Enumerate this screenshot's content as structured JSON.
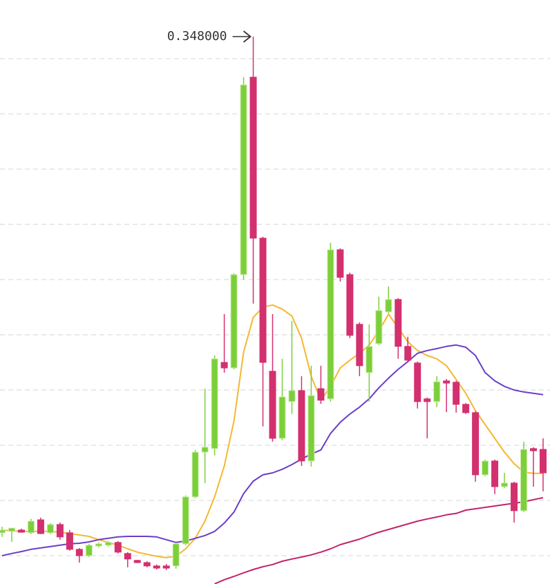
{
  "chart_data": {
    "type": "candlestick",
    "open": [
      0.1683,
      0.1688,
      0.1693,
      0.1683,
      0.173,
      0.1683,
      0.1713,
      0.1683,
      0.1623,
      0.16,
      0.1635,
      0.1638,
      0.1648,
      0.1608,
      0.1583,
      0.1575,
      0.1563,
      0.1563,
      0.1563,
      0.1643,
      0.1813,
      0.1975,
      0.1988,
      0.23,
      0.228,
      0.2618,
      0.3333,
      0.275,
      0.2268,
      0.2025,
      0.2158,
      0.2198,
      0.1943,
      0.2205,
      0.2168,
      0.2708,
      0.2618,
      0.2438,
      0.2263,
      0.2368,
      0.2483,
      0.2528,
      0.2358,
      0.2298,
      0.2168,
      0.2158,
      0.2233,
      0.2228,
      0.2148,
      0.2118,
      0.1893,
      0.1943,
      0.185,
      0.1863,
      0.1763,
      0.1988,
      0.1985
    ],
    "high": [
      0.1705,
      0.17,
      0.1698,
      0.1733,
      0.1738,
      0.1718,
      0.172,
      0.1693,
      0.1628,
      0.1643,
      0.1648,
      0.1653,
      0.1653,
      0.1613,
      0.1585,
      0.158,
      0.1568,
      0.157,
      0.1648,
      0.1818,
      0.1983,
      0.2205,
      0.2325,
      0.2475,
      0.2623,
      0.3333,
      0.348,
      0.2755,
      0.2475,
      0.2313,
      0.245,
      0.225,
      0.2288,
      0.2288,
      0.2733,
      0.2713,
      0.2625,
      0.2445,
      0.2438,
      0.2538,
      0.2575,
      0.2533,
      0.2393,
      0.2303,
      0.2173,
      0.225,
      0.224,
      0.2233,
      0.2153,
      0.2123,
      0.1948,
      0.1948,
      0.19,
      0.1868,
      0.2013,
      0.1993,
      0.2025
    ],
    "low": [
      0.1668,
      0.165,
      0.1683,
      0.1678,
      0.1678,
      0.1678,
      0.1658,
      0.1618,
      0.1575,
      0.1595,
      0.163,
      0.1633,
      0.1608,
      0.1558,
      0.1573,
      0.1558,
      0.155,
      0.1548,
      0.1553,
      0.1638,
      0.1808,
      0.1863,
      0.1963,
      0.2263,
      0.2275,
      0.26,
      0.2513,
      0.2068,
      0.2013,
      0.2018,
      0.2113,
      0.1925,
      0.1923,
      0.215,
      0.2158,
      0.2593,
      0.2388,
      0.225,
      0.2158,
      0.2363,
      0.2478,
      0.2313,
      0.23,
      0.2133,
      0.2025,
      0.2138,
      0.212,
      0.2118,
      0.2113,
      0.1868,
      0.1888,
      0.1823,
      0.1845,
      0.172,
      0.1758,
      0.185,
      0.1833
    ],
    "close": [
      0.1693,
      0.17,
      0.1685,
      0.1725,
      0.168,
      0.1713,
      0.1668,
      0.1623,
      0.16,
      0.1638,
      0.1643,
      0.1648,
      0.1613,
      0.1588,
      0.1575,
      0.1563,
      0.1555,
      0.1555,
      0.1643,
      0.1813,
      0.1975,
      0.1993,
      0.2313,
      0.228,
      0.2618,
      0.3305,
      0.275,
      0.23,
      0.2025,
      0.2175,
      0.2198,
      0.1943,
      0.218,
      0.2163,
      0.2708,
      0.2608,
      0.2398,
      0.2288,
      0.2358,
      0.2488,
      0.2528,
      0.2358,
      0.2308,
      0.2158,
      0.2158,
      0.223,
      0.2225,
      0.2148,
      0.2118,
      0.1893,
      0.1943,
      0.185,
      0.1863,
      0.1763,
      0.1985,
      0.198,
      0.19
    ],
    "up_color": "#7ccf38",
    "down_color": "#d3306f",
    "lines": [
      {
        "color": "#f4b731",
        "values": [
          0.1693,
          0.169,
          0.1688,
          0.1688,
          0.1688,
          0.1688,
          0.1685,
          0.168,
          0.1675,
          0.167,
          0.1658,
          0.1648,
          0.1638,
          0.1625,
          0.1613,
          0.1605,
          0.1598,
          0.1593,
          0.1598,
          0.1625,
          0.1663,
          0.1725,
          0.1813,
          0.1925,
          0.2088,
          0.2338,
          0.2463,
          0.25,
          0.2508,
          0.2493,
          0.2468,
          0.2388,
          0.225,
          0.2163,
          0.2213,
          0.228,
          0.2308,
          0.2333,
          0.2363,
          0.2413,
          0.2475,
          0.2425,
          0.2375,
          0.2343,
          0.2325,
          0.2313,
          0.2288,
          0.2238,
          0.2188,
          0.2125,
          0.2075,
          0.2025,
          0.1975,
          0.1933,
          0.1903,
          0.1898,
          0.1898
        ]
      },
      {
        "color": "#6a3cc9",
        "values": [
          0.16,
          0.1608,
          0.1615,
          0.1623,
          0.1628,
          0.1633,
          0.1638,
          0.1643,
          0.1645,
          0.165,
          0.1658,
          0.1663,
          0.1668,
          0.167,
          0.167,
          0.167,
          0.1668,
          0.1658,
          0.1648,
          0.1653,
          0.1663,
          0.1673,
          0.1688,
          0.1718,
          0.1758,
          0.1825,
          0.187,
          0.1893,
          0.19,
          0.1913,
          0.193,
          0.195,
          0.1968,
          0.1983,
          0.2043,
          0.2083,
          0.2113,
          0.2138,
          0.2168,
          0.2208,
          0.2243,
          0.2275,
          0.2303,
          0.2333,
          0.2343,
          0.235,
          0.2358,
          0.2363,
          0.2355,
          0.2325,
          0.2263,
          0.2233,
          0.2213,
          0.22,
          0.2193,
          0.2188,
          0.2183
        ]
      },
      {
        "color": "#c2226a",
        "values": [
          null,
          null,
          null,
          null,
          null,
          null,
          null,
          null,
          null,
          null,
          null,
          null,
          null,
          null,
          null,
          null,
          null,
          null,
          null,
          null,
          null,
          null,
          0.1498,
          0.1513,
          0.1525,
          0.1538,
          0.155,
          0.156,
          0.1568,
          0.158,
          0.1588,
          0.1595,
          0.1603,
          0.1613,
          0.1625,
          0.164,
          0.165,
          0.166,
          0.1673,
          0.1685,
          0.1695,
          0.1705,
          0.1715,
          0.1725,
          0.1733,
          0.174,
          0.1748,
          0.1753,
          0.1765,
          0.177,
          0.1775,
          0.178,
          0.1785,
          0.179,
          0.1795,
          0.1803,
          0.181
        ]
      }
    ],
    "ylim": [
      0.14975,
      0.36125
    ],
    "yticks": [
      0.16,
      0.18,
      0.2,
      0.22,
      0.24,
      0.26,
      0.28,
      0.3,
      0.32,
      0.34
    ],
    "grid": true,
    "annotation": "0.348000"
  }
}
